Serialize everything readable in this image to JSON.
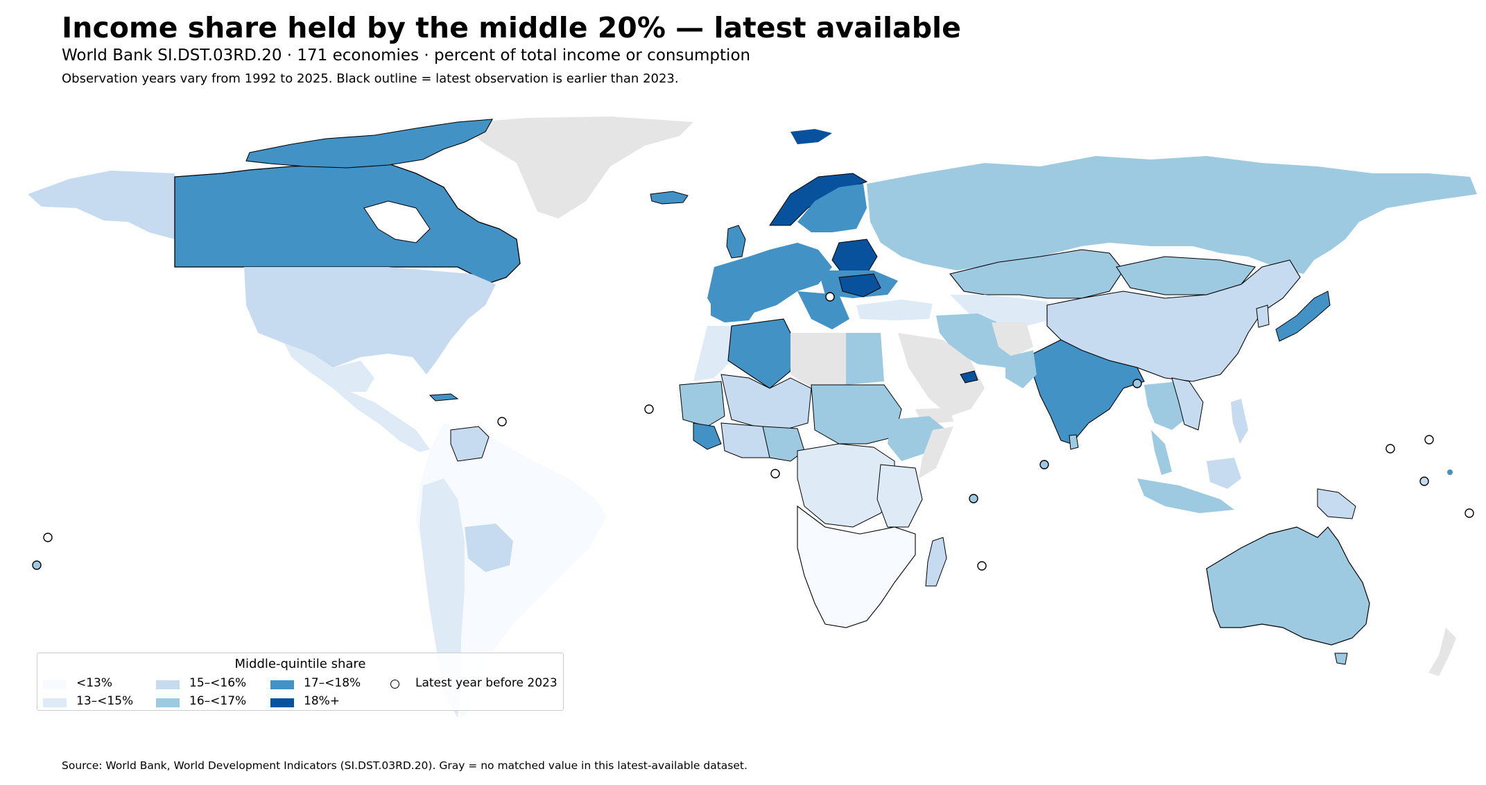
{
  "header": {
    "title": "Income share held by the middle 20% — latest available",
    "subtitle": "World Bank SI.DST.03RD.20 · 171 economies · percent of total income or consumption",
    "note": "Observation years vary from 1992 to 2025. Black outline = latest observation is earlier than 2023."
  },
  "legend": {
    "title": "Middle-quintile share",
    "items": [
      {
        "label": "<13%",
        "color": "#f7fbff"
      },
      {
        "label": "13–<15%",
        "color": "#deebf7"
      },
      {
        "label": "15–<16%",
        "color": "#c6dbef"
      },
      {
        "label": "16–<17%",
        "color": "#9ecae1"
      },
      {
        "label": "17–<18%",
        "color": "#4292c6"
      },
      {
        "label": "18%+",
        "color": "#08519c"
      }
    ],
    "outline_label": "Latest year before 2023"
  },
  "colors": {
    "no_data": "#e5e5e5",
    "outline": "#000000"
  },
  "footer": {
    "source": "Source: World Bank, World Development Indicators (SI.DST.03RD.20). Gray = no matched value in this latest-available dataset."
  }
}
